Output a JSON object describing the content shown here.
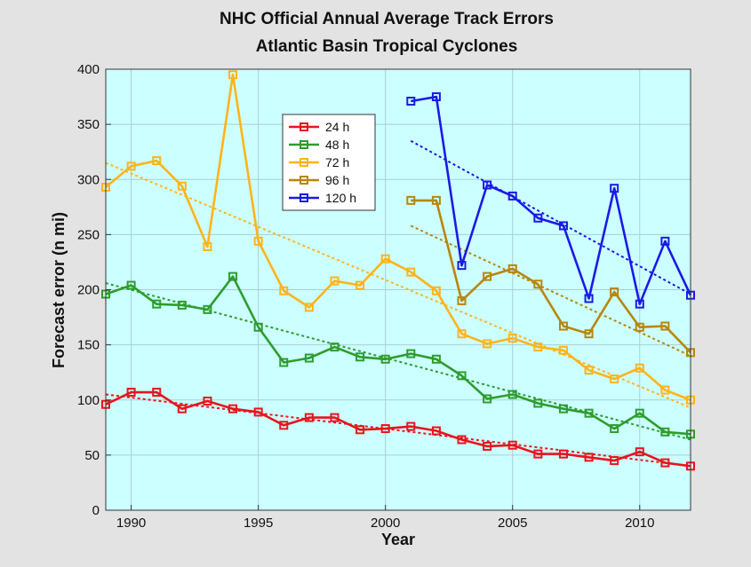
{
  "chart_data": {
    "type": "line",
    "title": "NHC Official Annual Average Track Errors",
    "subtitle": "Atlantic Basin Tropical Cyclones",
    "xlabel": "Year",
    "ylabel": "Forecast error (n mi)",
    "xlim": [
      1989,
      2012
    ],
    "ylim": [
      0,
      400
    ],
    "x_ticks": [
      1990,
      1995,
      2000,
      2005,
      2010
    ],
    "y_ticks": [
      0,
      50,
      100,
      150,
      200,
      250,
      300,
      350,
      400
    ],
    "grid": true,
    "legend_position": "upper-center",
    "background_color": "#ccffff",
    "series": [
      {
        "name": "24 h",
        "color": "#e8141c",
        "x": [
          1989,
          1990,
          1991,
          1992,
          1993,
          1994,
          1995,
          1996,
          1997,
          1998,
          1999,
          2000,
          2001,
          2002,
          2003,
          2004,
          2005,
          2006,
          2007,
          2008,
          2009,
          2010,
          2011,
          2012
        ],
        "values": [
          96,
          107,
          107,
          92,
          99,
          92,
          89,
          77,
          84,
          84,
          73,
          74,
          76,
          72,
          64,
          58,
          59,
          51,
          51,
          48,
          45,
          53,
          43,
          40
        ],
        "trend": [
          105,
          40
        ]
      },
      {
        "name": "48 h",
        "color": "#2e9c2e",
        "x": [
          1989,
          1990,
          1991,
          1992,
          1993,
          1994,
          1995,
          1996,
          1997,
          1998,
          1999,
          2000,
          2001,
          2002,
          2003,
          2004,
          2005,
          2006,
          2007,
          2008,
          2009,
          2010,
          2011,
          2012
        ],
        "values": [
          196,
          204,
          187,
          186,
          182,
          212,
          166,
          134,
          138,
          148,
          139,
          137,
          142,
          137,
          122,
          101,
          105,
          97,
          92,
          88,
          74,
          88,
          71,
          69
        ],
        "trend": [
          206,
          64
        ]
      },
      {
        "name": "72 h",
        "color": "#ffb31a",
        "x": [
          1989,
          1990,
          1991,
          1992,
          1993,
          1994,
          1995,
          1996,
          1997,
          1998,
          1999,
          2000,
          2001,
          2002,
          2003,
          2004,
          2005,
          2006,
          2007,
          2008,
          2009,
          2010,
          2011,
          2012
        ],
        "values": [
          293,
          312,
          317,
          294,
          239,
          395,
          244,
          199,
          184,
          208,
          204,
          228,
          216,
          199,
          160,
          151,
          156,
          148,
          145,
          127,
          119,
          129,
          109,
          100
        ],
        "trend": [
          315,
          93
        ]
      },
      {
        "name": "96 h",
        "color": "#b8860b",
        "x": [
          2001,
          2002,
          2003,
          2004,
          2005,
          2006,
          2007,
          2008,
          2009,
          2010,
          2011,
          2012
        ],
        "values": [
          281,
          281,
          190,
          212,
          219,
          205,
          167,
          160,
          198,
          166,
          167,
          143
        ],
        "trend": [
          258,
          140
        ]
      },
      {
        "name": "120 h",
        "color": "#1a1ae6",
        "x": [
          2001,
          2002,
          2003,
          2004,
          2005,
          2006,
          2007,
          2008,
          2009,
          2010,
          2011,
          2012
        ],
        "values": [
          371,
          375,
          222,
          295,
          285,
          265,
          258,
          192,
          292,
          187,
          244,
          195
        ],
        "trend": [
          335,
          196
        ]
      }
    ]
  }
}
